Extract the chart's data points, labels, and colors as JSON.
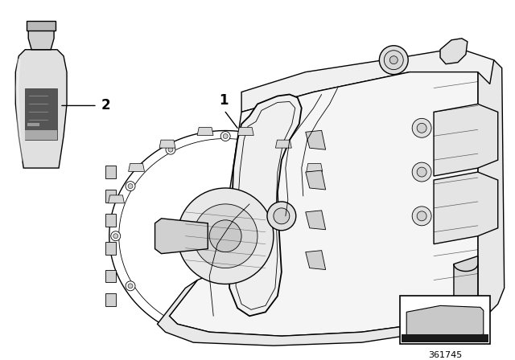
{
  "background_color": "#ffffff",
  "line_color": "#000000",
  "text_color": "#000000",
  "label_1": "1",
  "label_2": "2",
  "part_number": "361745",
  "font_size_label": 10,
  "light_gray": "#e8e8e8",
  "mid_gray": "#c8c8c8",
  "dark_gray": "#606060"
}
